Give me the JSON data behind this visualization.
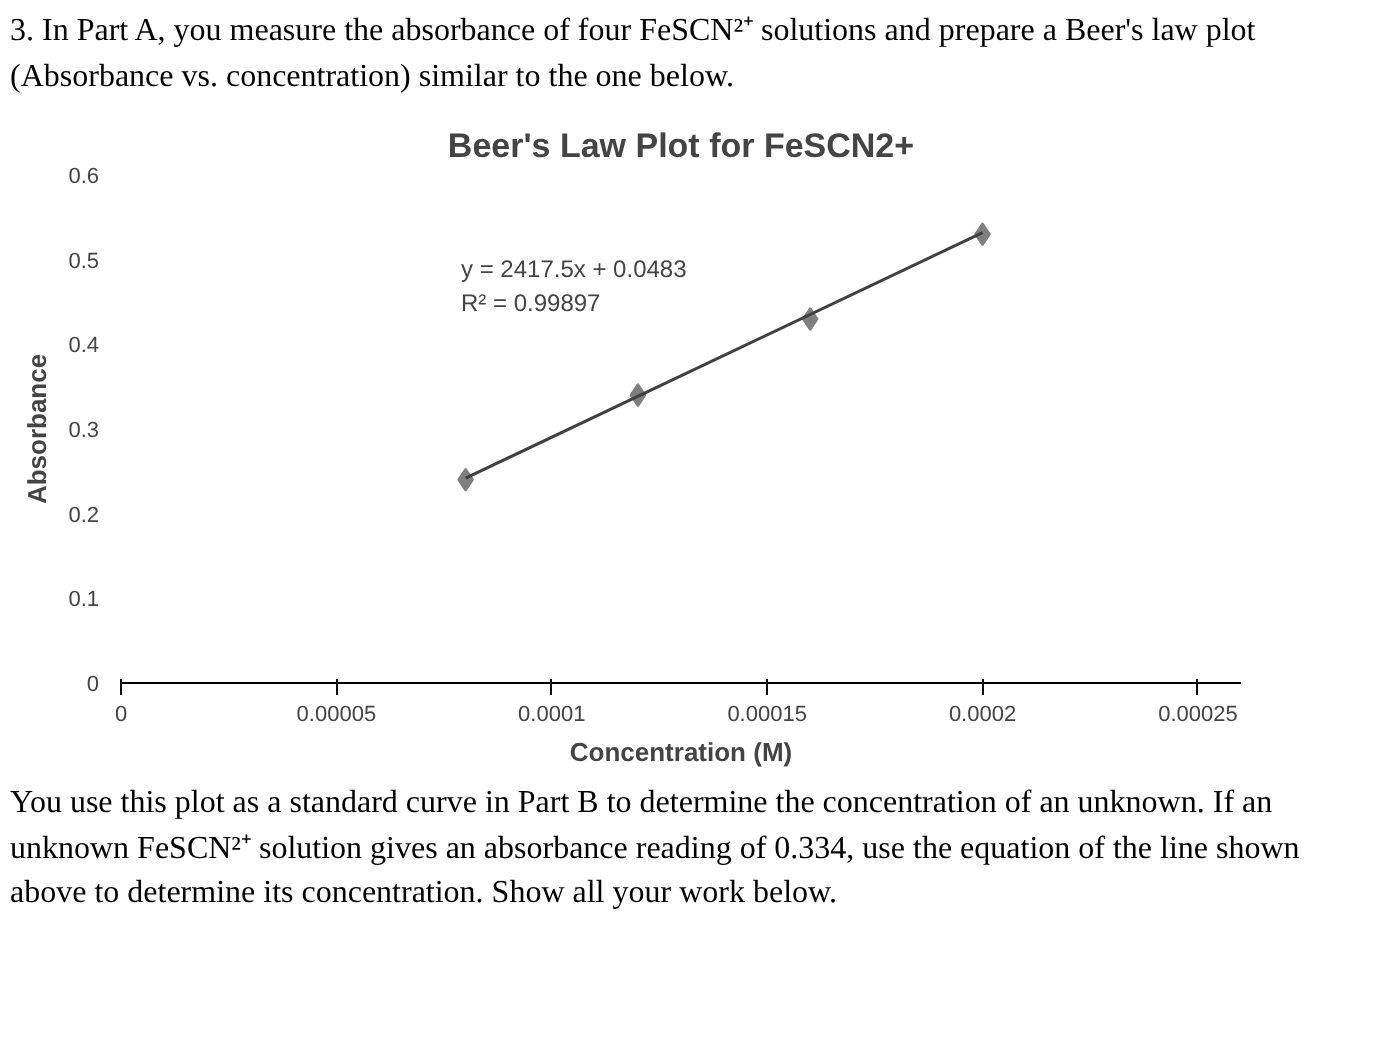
{
  "chart_data": {
    "type": "scatter",
    "title": "Beer's Law Plot for FeSCN2+",
    "xlabel": "Concentration (M)",
    "ylabel": "Absorbance",
    "x": [
      8e-05,
      0.00012,
      0.00016,
      0.0002
    ],
    "series": [
      {
        "color": "#7f7f7f",
        "values": [
          0.24,
          0.34,
          0.43,
          0.53
        ],
        "marker": "diamond"
      },
      {
        "type": "line",
        "color": "#404040",
        "x": [
          8e-05,
          0.0002
        ],
        "values": [
          0.242,
          0.532
        ],
        "marker": "none"
      }
    ],
    "xlim": [
      0,
      0.00026
    ],
    "ylim": [
      0,
      0.6
    ],
    "xticks": [
      0,
      {
        "value": 5e-05,
        "label": "0.00005"
      },
      {
        "value": 0.0001,
        "label": "0.0001"
      },
      {
        "value": 0.00015,
        "label": "0.00015"
      },
      {
        "value": 0.0002,
        "label": "0.0002"
      },
      {
        "value": 0.00025,
        "label": "0.00025"
      }
    ],
    "yticks": [
      0,
      0.1,
      0.2,
      0.3,
      0.4,
      0.5,
      0.6
    ],
    "grid": false,
    "annotations": [
      "3. In Part A, you measure the absorbance of four FeSCN²⁺ solutions and prepare a Beer's law plot (Absorbance vs. concentration) similar to the one below.",
      "y = 2417.5x + 0.0483",
      "R² = 0.99897",
      "You use this plot as a standard curve in Part B to determine the concentration of an unknown. If an unknown FeSCN²⁺ solution gives an absorbance reading of 0.334, use the equation of the line shown above to determine its concentration. Show all your work below."
    ]
  }
}
